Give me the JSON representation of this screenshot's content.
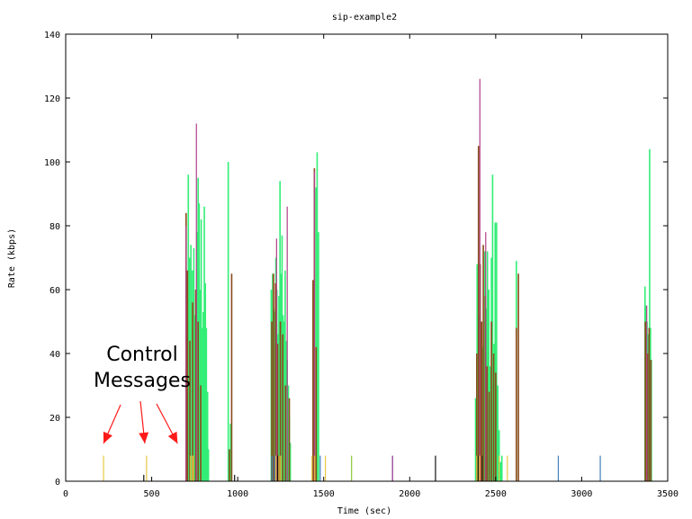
{
  "chart_data": {
    "type": "bar",
    "title": "sip-example2",
    "xlabel": "Time (sec)",
    "ylabel": "Rate (kbps)",
    "xlim": [
      0,
      3500
    ],
    "ylim": [
      0,
      140
    ],
    "x_ticks": [
      0,
      500,
      1000,
      1500,
      2000,
      2500,
      3000,
      3500
    ],
    "y_ticks": [
      0,
      20,
      40,
      60,
      80,
      100,
      120,
      140
    ],
    "grid": false,
    "annotation": {
      "line1": "Control",
      "line2": "Messages",
      "arrow_targets_x": [
        220,
        460,
        650
      ]
    },
    "colors": {
      "green": "#33ee77",
      "brown": "#8b4a1a",
      "magenta": "#b0408a",
      "orange": "#ff9a2a",
      "yellow": "#e8c840",
      "blue": "#3f7fbf",
      "black": "#111111",
      "lime": "#88cc33",
      "purple": "#8a2d8a"
    },
    "series": [
      {
        "color_key": "green",
        "x": [
          713,
          720,
          728,
          737,
          745,
          752,
          758,
          765,
          770,
          776,
          782,
          788,
          795,
          800,
          806,
          812,
          818,
          825,
          830,
          945,
          958,
          1195,
          1203,
          1210,
          1216,
          1222,
          1228,
          1235,
          1240,
          1246,
          1252,
          1258,
          1264,
          1270,
          1276,
          1282,
          1288,
          1295,
          1300,
          1306,
          1445,
          1455,
          1462,
          1470,
          2383,
          2392,
          2400,
          2408,
          2416,
          2424,
          2430,
          2437,
          2445,
          2452,
          2460,
          2468,
          2475,
          2482,
          2490,
          2497,
          2505,
          2512,
          2520,
          2528,
          2536,
          2620,
          3368,
          3375,
          3380,
          3385,
          3390,
          3395,
          3400,
          3405
        ],
        "values": [
          96,
          70,
          74,
          66,
          73,
          52,
          58,
          78,
          95,
          87,
          60,
          82,
          48,
          53,
          86,
          62,
          48,
          28,
          10,
          100,
          18,
          60,
          65,
          54,
          53,
          70,
          60,
          46,
          58,
          94,
          65,
          77,
          52,
          50,
          66,
          44,
          38,
          30,
          20,
          12,
          63,
          92,
          103,
          78,
          26,
          68,
          60,
          52,
          48,
          42,
          50,
          72,
          54,
          72,
          60,
          36,
          70,
          96,
          43,
          81,
          81,
          30,
          16,
          6,
          8,
          69,
          61,
          55,
          50,
          46,
          46,
          104,
          48,
          38
        ]
      },
      {
        "color_key": "brown",
        "x": [
          700,
          708,
          722,
          738,
          756,
          770,
          785,
          952,
          965,
          1198,
          1208,
          1220,
          1232,
          1248,
          1262,
          1278,
          1300,
          1438,
          1446,
          1456,
          2390,
          2400,
          2410,
          2418,
          2428,
          2440,
          2450,
          2462,
          2475,
          2488,
          2500,
          2620,
          2632,
          3370,
          3382,
          3392,
          3402
        ],
        "values": [
          84,
          66,
          44,
          56,
          60,
          50,
          30,
          10,
          65,
          50,
          65,
          62,
          43,
          50,
          46,
          30,
          26,
          63,
          98,
          42,
          40,
          105,
          68,
          50,
          74,
          58,
          36,
          28,
          50,
          40,
          34,
          48,
          65,
          50,
          40,
          48,
          38
        ]
      },
      {
        "color_key": "magenta",
        "x": [
          700,
          760,
          1226,
          1288,
          1446,
          2408,
          2442,
          3378
        ],
        "values": [
          80,
          112,
          76,
          86,
          97,
          126,
          78,
          55
        ]
      },
      {
        "color_key": "yellow",
        "x": [
          220,
          470,
          726,
          738,
          1222,
          1250,
          1432,
          1448,
          1510,
          2390,
          2404,
          2520,
          2568
        ],
        "values": [
          8,
          8,
          8,
          8,
          8,
          8,
          8,
          8,
          8,
          8,
          8,
          8,
          8
        ]
      },
      {
        "color_key": "orange",
        "x": [
          742,
          1240,
          2416
        ],
        "values": [
          8,
          8,
          8
        ]
      },
      {
        "color_key": "blue",
        "x": [
          1200,
          1214,
          1480,
          2864,
          3108
        ],
        "values": [
          8,
          8,
          8,
          8,
          8
        ]
      },
      {
        "color_key": "black",
        "x": [
          454,
          982,
          1232,
          2150,
          2398,
          2420
        ],
        "values": [
          2,
          2,
          8,
          8,
          8,
          8
        ]
      },
      {
        "color_key": "lime",
        "x": [
          1662
        ],
        "values": [
          8
        ]
      },
      {
        "color_key": "purple",
        "x": [
          1900
        ],
        "values": [
          8
        ]
      }
    ]
  }
}
